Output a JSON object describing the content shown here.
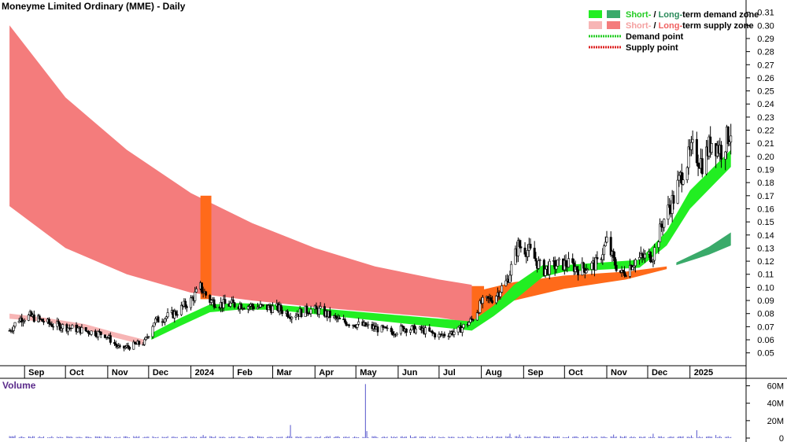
{
  "title": "Moneyme Limited Ordinary (MME) - Daily",
  "volume_title": "Volume",
  "legend": {
    "demand_zone": {
      "short": "Short-",
      "sep": " / ",
      "long": "Long-",
      "rest": "term demand zone"
    },
    "supply_zone": {
      "short": "Short-",
      "sep": " / ",
      "long": "Long-",
      "rest": "term supply zone"
    },
    "demand_point": "Demand point",
    "supply_point": "Supply point"
  },
  "colors": {
    "short_demand": "#22ee22",
    "long_demand": "#3aaa6a",
    "short_supply": "#f7b5b5",
    "long_supply": "#f47c7c",
    "overlap": "#ff6a1a",
    "demand_point": "#22cc22",
    "supply_point": "#dd2222",
    "volume": "#5555cc",
    "volume_title": "#5a2a8a"
  },
  "chart_data": [
    {
      "type": "candlestick",
      "title": "Moneyme Limited Ordinary (MME) - Daily",
      "x_tick_labels": [
        "Sep",
        "Oct",
        "Nov",
        "Dec",
        "2024",
        "Feb",
        "Mar",
        "Apr",
        "May",
        "Jun",
        "Jul",
        "Aug",
        "Sep",
        "Oct",
        "Nov",
        "Dec",
        "2025"
      ],
      "y_tick_labels": [
        "0.05",
        "0.06",
        "0.07",
        "0.08",
        "0.09",
        "0.10",
        "0.11",
        "0.12",
        "0.13",
        "0.14",
        "0.15",
        "0.16",
        "0.17",
        "0.18",
        "0.19",
        "0.20",
        "0.21",
        "0.22",
        "0.23",
        "0.24",
        "0.25",
        "0.26",
        "0.27",
        "0.28",
        "0.29",
        "0.30",
        "0.31"
      ],
      "ylim": [
        0.042,
        0.317
      ],
      "price_path": [
        [
          "2023-08-21",
          0.067
        ],
        [
          "2023-08-28",
          0.076
        ],
        [
          "2023-09-05",
          0.078
        ],
        [
          "2023-09-20",
          0.072
        ],
        [
          "2023-10-10",
          0.068
        ],
        [
          "2023-10-30",
          0.064
        ],
        [
          "2023-11-10",
          0.053
        ],
        [
          "2023-11-28",
          0.058
        ],
        [
          "2023-12-05",
          0.074
        ],
        [
          "2023-12-20",
          0.08
        ],
        [
          "2024-01-01",
          0.09
        ],
        [
          "2024-01-08",
          0.1
        ],
        [
          "2024-01-15",
          0.09
        ],
        [
          "2024-01-24",
          0.087
        ],
        [
          "2024-02-05",
          0.087
        ],
        [
          "2024-02-20",
          0.085
        ],
        [
          "2024-03-05",
          0.084
        ],
        [
          "2024-03-15",
          0.079
        ],
        [
          "2024-03-28",
          0.083
        ],
        [
          "2024-04-05",
          0.082
        ],
        [
          "2024-04-20",
          0.074
        ],
        [
          "2024-05-01",
          0.072
        ],
        [
          "2024-05-10",
          0.07
        ],
        [
          "2024-05-28",
          0.066
        ],
        [
          "2024-06-05",
          0.069
        ],
        [
          "2024-06-20",
          0.067
        ],
        [
          "2024-07-01",
          0.063
        ],
        [
          "2024-07-15",
          0.067
        ],
        [
          "2024-07-25",
          0.075
        ],
        [
          "2024-08-01",
          0.088
        ],
        [
          "2024-08-10",
          0.092
        ],
        [
          "2024-08-20",
          0.105
        ],
        [
          "2024-08-28",
          0.132
        ],
        [
          "2024-09-05",
          0.128
        ],
        [
          "2024-09-15",
          0.113
        ],
        [
          "2024-09-25",
          0.117
        ],
        [
          "2024-10-03",
          0.118
        ],
        [
          "2024-10-12",
          0.114
        ],
        [
          "2024-10-25",
          0.118
        ],
        [
          "2024-11-01",
          0.135
        ],
        [
          "2024-11-06",
          0.12
        ],
        [
          "2024-11-12",
          0.11
        ],
        [
          "2024-11-22",
          0.121
        ],
        [
          "2024-12-05",
          0.125
        ],
        [
          "2024-12-12",
          0.15
        ],
        [
          "2024-12-20",
          0.168
        ],
        [
          "2024-12-27",
          0.19
        ],
        [
          "2025-01-03",
          0.205
        ],
        [
          "2025-01-10",
          0.195
        ],
        [
          "2025-01-17",
          0.212
        ],
        [
          "2025-01-24",
          0.205
        ],
        [
          "2025-01-31",
          0.22
        ]
      ],
      "long_term_supply_zone": {
        "upper": [
          [
            "2023-08-21",
            0.3
          ],
          [
            "2023-10-01",
            0.245
          ],
          [
            "2023-11-15",
            0.205
          ],
          [
            "2024-01-01",
            0.172
          ],
          [
            "2024-02-15",
            0.149
          ],
          [
            "2024-04-01",
            0.13
          ],
          [
            "2024-05-15",
            0.116
          ],
          [
            "2024-07-01",
            0.106
          ],
          [
            "2024-07-25",
            0.102
          ]
        ],
        "lower": [
          [
            "2023-08-21",
            0.162
          ],
          [
            "2023-10-01",
            0.13
          ],
          [
            "2023-11-15",
            0.11
          ],
          [
            "2024-01-01",
            0.096
          ],
          [
            "2024-02-15",
            0.09
          ],
          [
            "2024-04-01",
            0.085
          ],
          [
            "2024-05-15",
            0.081
          ],
          [
            "2024-07-01",
            0.077
          ],
          [
            "2024-07-25",
            0.073
          ]
        ]
      },
      "short_term_supply_zone": {
        "upper": [
          [
            "2023-08-21",
            0.08
          ],
          [
            "2023-09-15",
            0.077
          ],
          [
            "2023-10-15",
            0.072
          ],
          [
            "2023-11-05",
            0.066
          ],
          [
            "2023-11-28",
            0.06
          ]
        ],
        "lower": [
          [
            "2023-08-21",
            0.076
          ],
          [
            "2023-09-15",
            0.074
          ],
          [
            "2023-10-15",
            0.068
          ],
          [
            "2023-11-05",
            0.062
          ],
          [
            "2023-11-28",
            0.056
          ]
        ]
      },
      "long_term_supply_zone_2": {
        "upper": [
          [
            "2024-08-01",
            0.098
          ],
          [
            "2024-08-25",
            0.104
          ],
          [
            "2024-10-01",
            0.109
          ],
          [
            "2024-11-15",
            0.112
          ],
          [
            "2024-12-15",
            0.116
          ]
        ],
        "lower": [
          [
            "2024-08-01",
            0.079
          ],
          [
            "2024-08-25",
            0.09
          ],
          [
            "2024-10-01",
            0.099
          ],
          [
            "2024-11-15",
            0.106
          ],
          [
            "2024-12-15",
            0.114
          ]
        ]
      },
      "short_term_demand_zone": {
        "upper": [
          [
            "2023-12-03",
            0.065
          ],
          [
            "2023-12-25",
            0.077
          ],
          [
            "2024-01-15",
            0.087
          ],
          [
            "2024-02-05",
            0.088
          ],
          [
            "2024-03-01",
            0.087
          ],
          [
            "2024-07-25",
            0.074
          ],
          [
            "2024-08-10",
            0.086
          ],
          [
            "2024-08-25",
            0.102
          ],
          [
            "2024-09-15",
            0.117
          ],
          [
            "2024-10-01",
            0.117
          ],
          [
            "2024-11-25",
            0.121
          ],
          [
            "2024-12-15",
            0.143
          ],
          [
            "2025-01-01",
            0.174
          ],
          [
            "2025-01-31",
            0.205
          ]
        ],
        "lower": [
          [
            "2023-12-03",
            0.06
          ],
          [
            "2023-12-25",
            0.071
          ],
          [
            "2024-01-15",
            0.081
          ],
          [
            "2024-02-05",
            0.083
          ],
          [
            "2024-03-01",
            0.083
          ],
          [
            "2024-07-25",
            0.067
          ],
          [
            "2024-08-10",
            0.078
          ],
          [
            "2024-08-25",
            0.09
          ],
          [
            "2024-09-15",
            0.108
          ],
          [
            "2024-10-01",
            0.112
          ],
          [
            "2024-11-25",
            0.115
          ],
          [
            "2024-12-15",
            0.132
          ],
          [
            "2025-01-01",
            0.16
          ],
          [
            "2025-01-31",
            0.192
          ]
        ]
      },
      "long_term_demand_zone": {
        "upper": [
          [
            "2024-12-22",
            0.119
          ],
          [
            "2025-01-15",
            0.131
          ],
          [
            "2025-01-31",
            0.142
          ]
        ],
        "lower": [
          [
            "2024-12-22",
            0.117
          ],
          [
            "2025-01-15",
            0.125
          ],
          [
            "2025-01-31",
            0.132
          ]
        ]
      },
      "overlap_zones": [
        {
          "from": "2024-01-08",
          "to": "2024-01-16",
          "top": 0.17,
          "bottom": 0.091
        },
        {
          "from": "2024-07-25",
          "to": "2024-08-03",
          "top": 0.101,
          "bottom": 0.075
        }
      ]
    },
    {
      "type": "bar",
      "title": "Volume",
      "y_tick_labels": [
        "0",
        "20M",
        "40M",
        "60M"
      ],
      "ylim": [
        0,
        65000000
      ],
      "typical_volume": 1500000,
      "spikes": [
        [
          "2023-08-25",
          3000000
        ],
        [
          "2023-12-10",
          3000000
        ],
        [
          "2024-01-10",
          3500000
        ],
        [
          "2024-03-14",
          15000000
        ],
        [
          "2024-05-08",
          62000000
        ],
        [
          "2024-05-09",
          8000000
        ],
        [
          "2024-06-10",
          3000000
        ],
        [
          "2024-08-22",
          5000000
        ],
        [
          "2024-08-29",
          4000000
        ],
        [
          "2024-11-06",
          4000000
        ],
        [
          "2024-12-05",
          5000000
        ],
        [
          "2024-12-07",
          3500000
        ],
        [
          "2025-01-02",
          3000000
        ],
        [
          "2025-01-06",
          9000000
        ],
        [
          "2025-01-20",
          3500000
        ]
      ]
    }
  ]
}
